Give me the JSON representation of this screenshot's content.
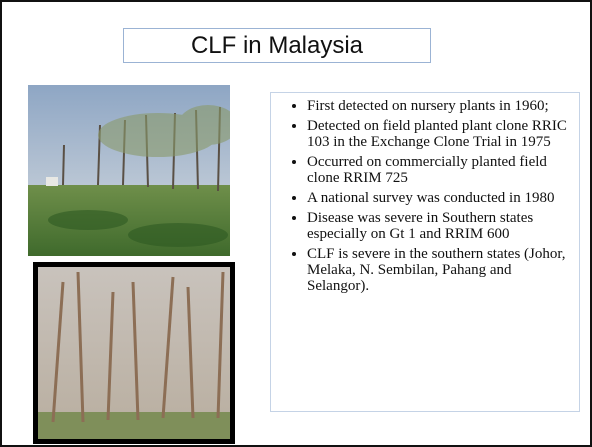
{
  "slide": {
    "title": "CLF in Malaysia",
    "bullets": [
      "First detected on nursery plants in 1960;",
      "Detected on field planted plant clone RRIC 103 in the Exchange Clone Trial in 1975",
      "Occurred on commercially planted field clone RRIM 725",
      "A national survey was conducted in 1980",
      "Disease was severe in Southern states especially on Gt 1 and RRIM 600",
      "CLF is severe in the southern states (Johor, Melaka, N. Sembilan, Pahang and Selangor)."
    ]
  }
}
